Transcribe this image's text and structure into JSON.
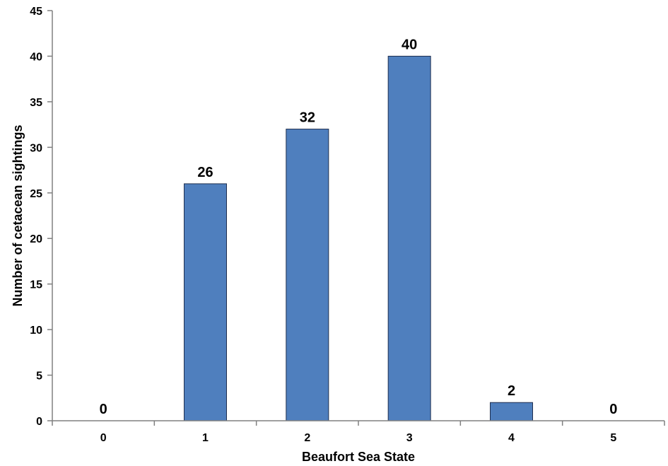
{
  "chart_data": {
    "type": "bar",
    "categories": [
      "0",
      "1",
      "2",
      "3",
      "4",
      "5"
    ],
    "values": [
      0,
      26,
      32,
      40,
      2,
      0
    ],
    "data_labels": [
      "0",
      "26",
      "32",
      "40",
      "2",
      "0"
    ],
    "title": "",
    "xlabel": "Beaufort Sea State",
    "ylabel": "Number of cetacean sightings",
    "ylim": [
      0,
      45
    ],
    "yticks": [
      0,
      5,
      10,
      15,
      20,
      25,
      30,
      35,
      40,
      45
    ],
    "grid": false,
    "legend": "none",
    "bar_color": "#4f7fbe"
  }
}
